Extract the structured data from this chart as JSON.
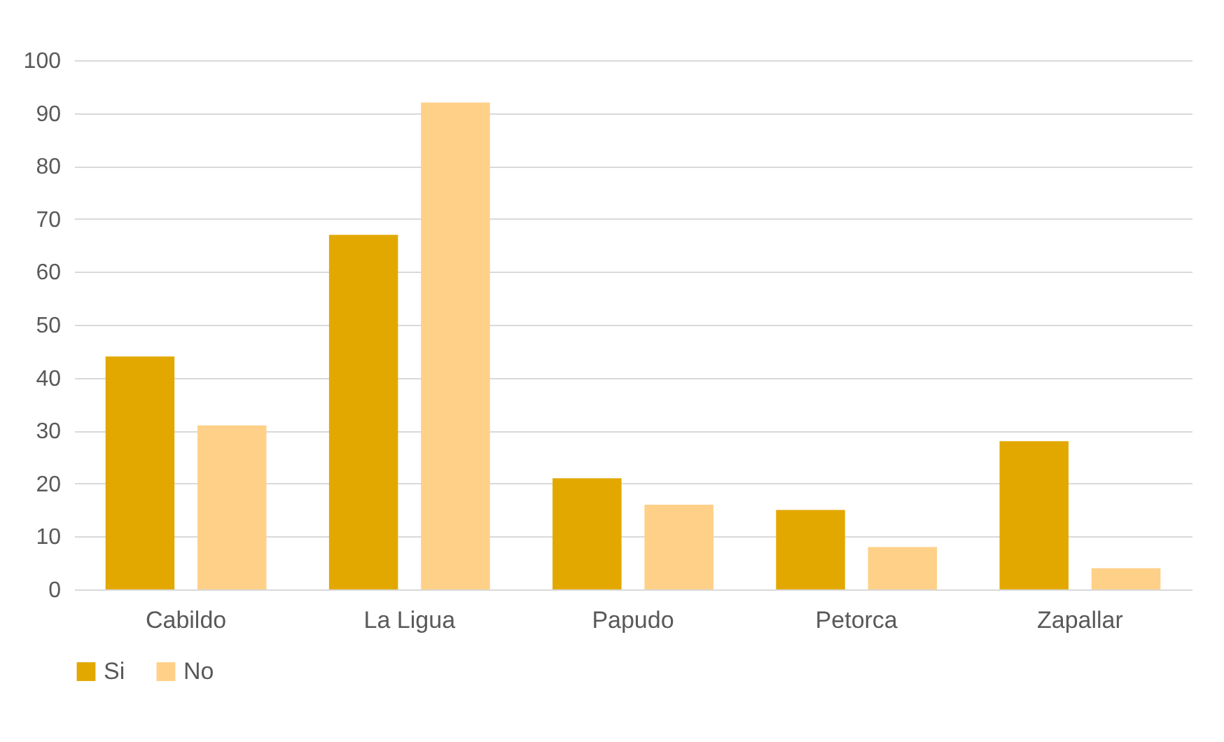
{
  "chart_data": {
    "type": "bar",
    "categories": [
      "Cabildo",
      "La Ligua",
      "Papudo",
      "Petorca",
      "Zapallar"
    ],
    "series": [
      {
        "name": "Si",
        "color": "#e2a800",
        "values": [
          44,
          67,
          21,
          15,
          28
        ]
      },
      {
        "name": "No",
        "color": "#ffd088",
        "values": [
          31,
          92,
          16,
          8,
          4
        ]
      }
    ],
    "ylim": [
      0,
      100
    ],
    "yticks": [
      0,
      10,
      20,
      30,
      40,
      50,
      60,
      70,
      80,
      90,
      100
    ],
    "grid": "y",
    "legend": "bottom"
  }
}
